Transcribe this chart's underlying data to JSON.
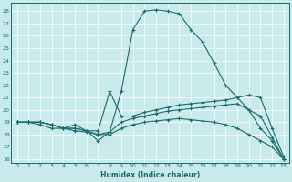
{
  "xlabel": "Humidex (Indice chaleur)",
  "bg_color": "#c8eaea",
  "line_color": "#1a6b6b",
  "grid_color": "#b8d8d8",
  "xlim": [
    -0.5,
    23.5
  ],
  "ylim": [
    15.7,
    28.7
  ],
  "yticks": [
    16,
    17,
    18,
    19,
    20,
    21,
    22,
    23,
    24,
    25,
    26,
    27,
    28
  ],
  "xticks": [
    0,
    1,
    2,
    3,
    4,
    5,
    6,
    7,
    8,
    9,
    10,
    11,
    12,
    13,
    14,
    15,
    16,
    17,
    18,
    19,
    20,
    21,
    22,
    23
  ],
  "line1": {
    "x": [
      0,
      1,
      2,
      3,
      4,
      5,
      6,
      7,
      8,
      9,
      10,
      11,
      12,
      13,
      14,
      15,
      16,
      17,
      18,
      19,
      20,
      21,
      22,
      23
    ],
    "y": [
      19,
      19,
      18.8,
      18.5,
      18.5,
      18.8,
      18.3,
      17.5,
      18.2,
      21.5,
      26.5,
      28.0,
      28.1,
      28.0,
      27.8,
      26.5,
      25.5,
      23.8,
      22.0,
      21.0,
      20.0,
      18.5,
      17.5,
      16.0
    ]
  },
  "line2": {
    "x": [
      0,
      1,
      2,
      3,
      4,
      5,
      6,
      7,
      8,
      9,
      10,
      11,
      12,
      13,
      14,
      15,
      16,
      17,
      18,
      19,
      20,
      21,
      22,
      23
    ],
    "y": [
      19,
      19,
      19.0,
      18.8,
      18.5,
      18.5,
      18.3,
      18.3,
      21.5,
      19.5,
      19.5,
      19.8,
      20.0,
      20.2,
      20.4,
      20.5,
      20.6,
      20.7,
      20.8,
      21.0,
      21.2,
      21.0,
      18.5,
      16.2
    ]
  },
  "line3": {
    "x": [
      0,
      1,
      2,
      3,
      4,
      5,
      6,
      7,
      8,
      9,
      10,
      11,
      12,
      13,
      14,
      15,
      16,
      17,
      18,
      19,
      20,
      21,
      22,
      23
    ],
    "y": [
      19,
      19,
      19.0,
      18.8,
      18.5,
      18.5,
      18.3,
      18.0,
      18.2,
      19.0,
      19.3,
      19.5,
      19.7,
      19.9,
      20.0,
      20.1,
      20.2,
      20.3,
      20.4,
      20.5,
      20.0,
      19.5,
      17.8,
      16.0
    ]
  },
  "line4": {
    "x": [
      0,
      1,
      2,
      3,
      4,
      5,
      6,
      7,
      8,
      9,
      10,
      11,
      12,
      13,
      14,
      15,
      16,
      17,
      18,
      19,
      20,
      21,
      22,
      23
    ],
    "y": [
      19,
      19,
      19.0,
      18.8,
      18.5,
      18.3,
      18.2,
      18.0,
      18.0,
      18.5,
      18.8,
      19.0,
      19.1,
      19.2,
      19.3,
      19.2,
      19.1,
      19.0,
      18.8,
      18.5,
      18.0,
      17.5,
      17.0,
      16.0
    ]
  }
}
